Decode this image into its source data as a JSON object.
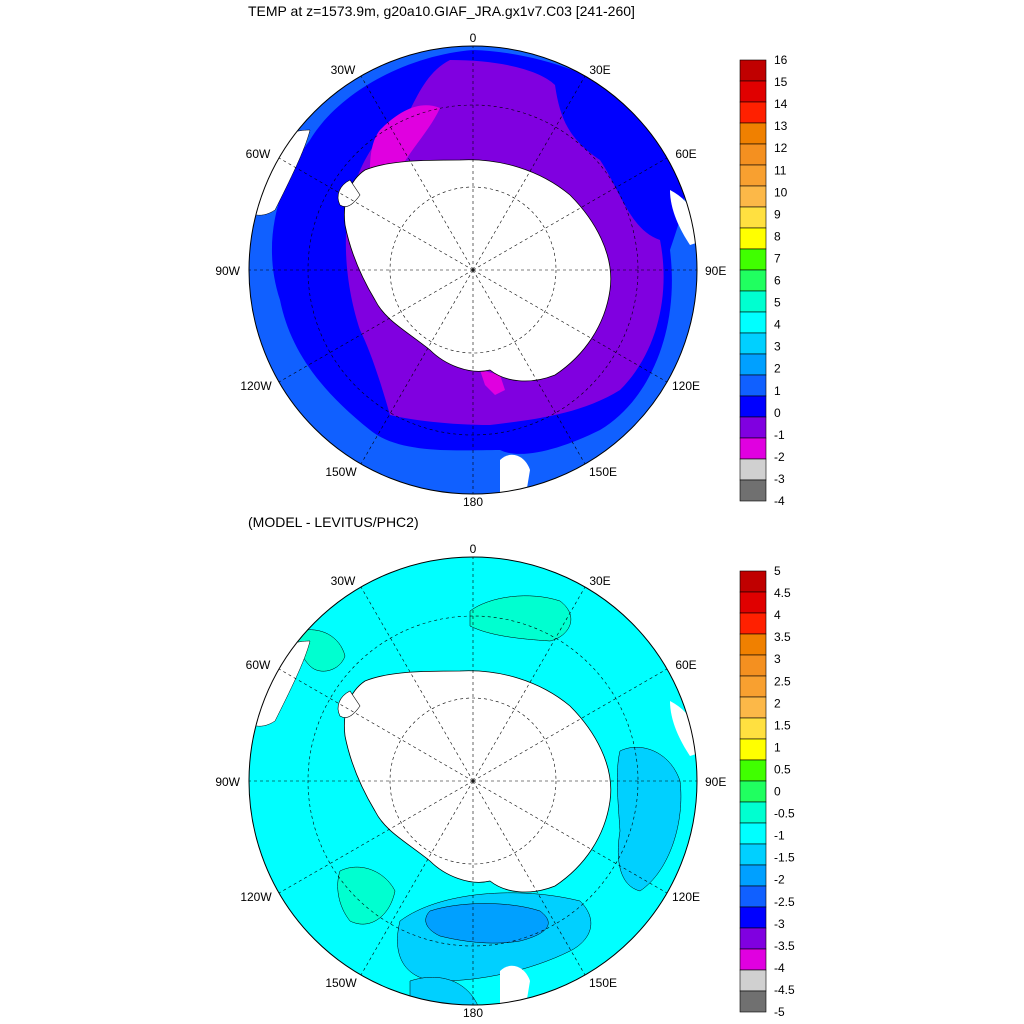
{
  "titles": {
    "top": "TEMP at z=1573.9m, g20a10.GIAF_JRA.gx1v7.C03 [241-260]",
    "bottom": "(MODEL - LEVITUS/PHC2)"
  },
  "longitude_labels": [
    "0",
    "30E",
    "60E",
    "90E",
    "120E",
    "150E",
    "180",
    "150W",
    "120W",
    "90W",
    "60W",
    "30W"
  ],
  "maps": {
    "top": {
      "variable": "TEMP",
      "depth": "z=1573.9m",
      "colorbar": {
        "labels": [
          "16",
          "15",
          "14",
          "13",
          "12",
          "11",
          "10",
          "9",
          "8",
          "7",
          "6",
          "5",
          "4",
          "3",
          "2",
          "1",
          "0",
          "-1",
          "-2",
          "-3",
          "-4"
        ],
        "colors": [
          "#c00000",
          "#e00000",
          "#ff2000",
          "#f08000",
          "#f49020",
          "#f8a030",
          "#fcb848",
          "#ffe040",
          "#ffff00",
          "#40ff00",
          "#20ff60",
          "#00ffd0",
          "#00ffff",
          "#00d0ff",
          "#00a0ff",
          "#1060ff",
          "#0000ff",
          "#8000e0",
          "#e000e0",
          "#d0d0d0",
          "#707070"
        ]
      },
      "fields": {
        "zone_colors": [
          "#1060ff",
          "#0000ff",
          "#8000e0",
          "#e000e0"
        ],
        "land_color": "#ffffff"
      }
    },
    "bottom": {
      "colorbar": {
        "labels": [
          "5",
          "4.5",
          "4",
          "3.5",
          "3",
          "2.5",
          "2",
          "1.5",
          "1",
          "0.5",
          "0",
          "-0.5",
          "-1",
          "-1.5",
          "-2",
          "-2.5",
          "-3",
          "-3.5",
          "-4",
          "-4.5",
          "-5"
        ],
        "colors": [
          "#c00000",
          "#e00000",
          "#ff2000",
          "#f08000",
          "#f49020",
          "#f8a030",
          "#fcb848",
          "#ffe040",
          "#ffff00",
          "#40ff00",
          "#20ff60",
          "#00ffd0",
          "#00ffff",
          "#00d0ff",
          "#00a0ff",
          "#1060ff",
          "#0000ff",
          "#8000e0",
          "#e000e0",
          "#d0d0d0",
          "#707070"
        ]
      },
      "fields": {
        "background_color": "#00ffff",
        "anomaly_colors": [
          "#00ffd0",
          "#00d0ff",
          "#00a0ff"
        ],
        "land_color": "#ffffff"
      }
    }
  }
}
